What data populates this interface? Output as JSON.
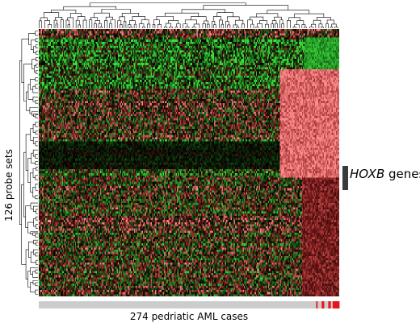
{
  "chart_data": {
    "type": "heatmap",
    "ylabel": "126 probe sets",
    "xlabel": "274 pedriatic AML cases",
    "annotation": {
      "gene_italic": "HOXB",
      "gene_rest": " genes"
    },
    "n_rows": 126,
    "n_cols": 274,
    "colors": {
      "high": "#ff8a8a",
      "mid_red": "#8a1f1f",
      "neutral": "#000000",
      "mid_green": "#1a6b1a",
      "low": "#39e039",
      "case_bar_default": "#cccccc",
      "case_bar_marked": "#e8141c",
      "gene_bar": "#3a3a3a"
    },
    "row_blocks": [
      {
        "from": 0.0,
        "to": 0.03,
        "bias": 0.25
      },
      {
        "from": 0.03,
        "to": 0.13,
        "bias": -0.35
      },
      {
        "from": 0.13,
        "to": 0.22,
        "bias": -0.2
      },
      {
        "from": 0.22,
        "to": 0.37,
        "bias": 0.05
      },
      {
        "from": 0.37,
        "to": 0.41,
        "bias": 0.1
      },
      {
        "from": 0.41,
        "to": 0.55,
        "bias": -0.1
      },
      {
        "from": 0.55,
        "to": 0.7,
        "bias": 0.0
      },
      {
        "from": 0.7,
        "to": 1.0,
        "bias": 0.05
      }
    ],
    "col_blocks": [
      {
        "from_col": 220,
        "to_col": 274,
        "rows_from": 0.15,
        "rows_to": 0.55,
        "value": 0.85
      },
      {
        "from_col": 242,
        "to_col": 274,
        "rows_from": 0.03,
        "rows_to": 0.15,
        "value": -0.7
      },
      {
        "from_col": 240,
        "to_col": 274,
        "rows_from": 0.55,
        "rows_to": 1.0,
        "value": 0.45
      }
    ],
    "hoxb_rows": [
      0.42,
      0.52
    ],
    "case_bar_marked_cols": [
      253,
      258,
      259,
      264,
      265,
      268,
      269,
      270,
      271,
      272,
      273
    ]
  }
}
